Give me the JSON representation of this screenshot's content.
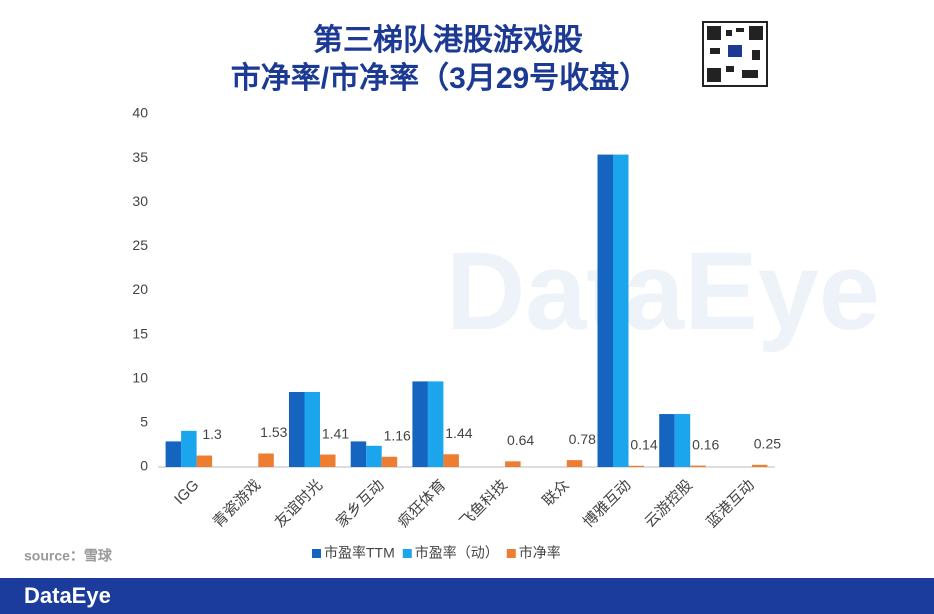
{
  "chart_data": {
    "type": "bar",
    "title": "第三梯队港股游戏股",
    "subtitle": "市净率/市净率（3月29号收盘）",
    "source": "source：雪球",
    "watermark": "DataEye",
    "footer": "DataEye",
    "categories": [
      "IGG",
      "青瓷游戏",
      "友谊时光",
      "家乡互动",
      "疯狂体育",
      "飞鱼科技",
      "联众",
      "博雅互动",
      "云游控股",
      "蓝港互动"
    ],
    "series": [
      {
        "name": "市盈率TTM",
        "color": "#1565c0",
        "values": [
          2.9,
          null,
          8.5,
          2.9,
          9.7,
          null,
          null,
          35.4,
          6.0,
          null
        ]
      },
      {
        "name": "市盈率（动）",
        "color": "#1aa5ec",
        "values": [
          4.1,
          null,
          8.5,
          2.4,
          9.7,
          null,
          null,
          35.4,
          6.0,
          null
        ]
      },
      {
        "name": "市净率",
        "color": "#ed7d31",
        "show_labels": true,
        "values": [
          1.3,
          1.53,
          1.41,
          1.16,
          1.44,
          0.64,
          0.78,
          0.14,
          0.16,
          0.25
        ]
      }
    ],
    "ylim": [
      0,
      40
    ],
    "yticks": [
      0,
      5,
      10,
      15,
      20,
      25,
      30,
      35,
      40
    ],
    "grid": false
  }
}
